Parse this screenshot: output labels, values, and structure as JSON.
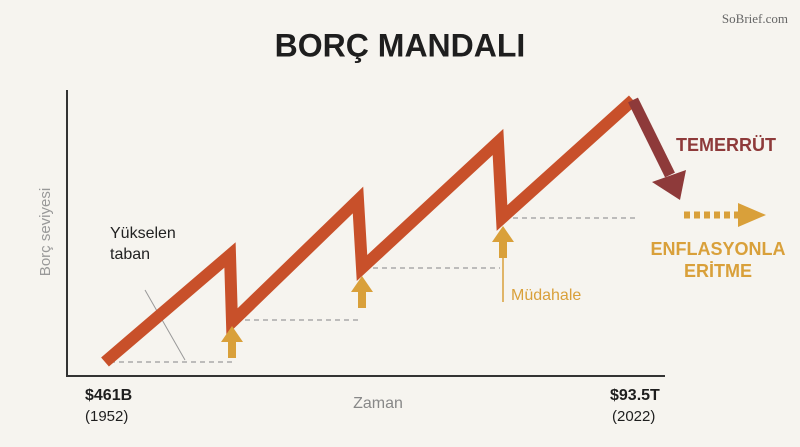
{
  "header": {
    "title": "BORÇ MANDALI",
    "watermark": "SoBrief.com"
  },
  "axes": {
    "y_label": "Borç seviyesi",
    "x_label": "Zaman"
  },
  "start": {
    "value": "$461B",
    "year": "(1952)"
  },
  "end": {
    "value": "$93.5T",
    "year": "(2022)"
  },
  "annotations": {
    "rising_floor": [
      "Yükselen",
      "taban"
    ],
    "intervention": "Müdahale",
    "default": "TEMERRÜT",
    "inflation": [
      "ENFLASYONLA",
      "ERİTME"
    ]
  }
}
